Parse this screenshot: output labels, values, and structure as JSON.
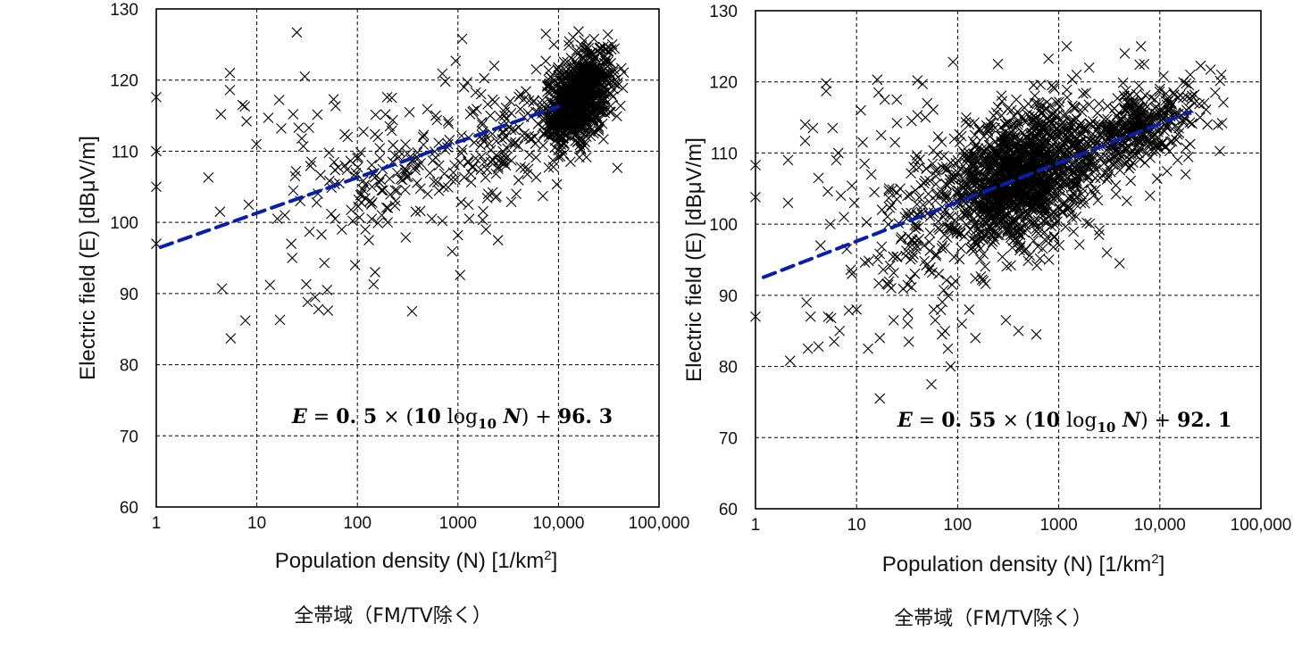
{
  "chart_data": [
    {
      "type": "scatter",
      "id": "left",
      "title": "",
      "xlabel": "Population density (N) [1/km",
      "xlabel_sup": "2",
      "xlabel_end": "]",
      "ylabel": "Electric field (E) [dBμV/m]",
      "xscale": "log",
      "xlim": [
        1,
        100000
      ],
      "ylim": [
        60,
        130
      ],
      "xticks": [
        1,
        10,
        100,
        1000,
        10000,
        100000
      ],
      "xtick_labels": [
        "1",
        "10",
        "100",
        "1000",
        "10,000",
        "100,000"
      ],
      "yticks": [
        60,
        70,
        80,
        90,
        100,
        110,
        120,
        130
      ],
      "ytick_labels": [
        "60",
        "70",
        "80",
        "90",
        "100",
        "110",
        "120",
        "130"
      ],
      "grid": true,
      "marker": "x",
      "fit": {
        "slope": 0.5,
        "intercept": 96.3,
        "x_range": [
          1.1,
          10000
        ],
        "color": "#0a1fa8",
        "style": "dashed"
      },
      "equation_text": "E = 0.5 × (10 log₁₀ N) + 96.3",
      "caption": "全帯域（FM/TV除く）",
      "points": [
        [
          1.05,
          117.6
        ],
        [
          1.05,
          110
        ],
        [
          1.05,
          105
        ],
        [
          1.05,
          97
        ],
        [
          3.3,
          106.3
        ],
        [
          4.3,
          101.5
        ],
        [
          4.4,
          115.2
        ],
        [
          4.5,
          90.7
        ],
        [
          5.4,
          121
        ],
        [
          5.4,
          118.6
        ],
        [
          5.5,
          83.7
        ],
        [
          7.2,
          116.5
        ],
        [
          7.6,
          116.3
        ],
        [
          7.7,
          86.2
        ],
        [
          7.9,
          114.2
        ],
        [
          8.3,
          102.5
        ],
        [
          9.9,
          111
        ],
        [
          13,
          114.7
        ],
        [
          13.5,
          91.2
        ],
        [
          16,
          100.5
        ],
        [
          16.7,
          117.2
        ],
        [
          17,
          86.3
        ],
        [
          17.5,
          113.2
        ],
        [
          19,
          101
        ],
        [
          22,
          97
        ],
        [
          22.5,
          95
        ],
        [
          23,
          115.2
        ],
        [
          24,
          106.5
        ],
        [
          24.5,
          107.2
        ],
        [
          25,
          126.7
        ],
        [
          26,
          113.3
        ],
        [
          27,
          103
        ],
        [
          28,
          111.8
        ],
        [
          29,
          110.7
        ],
        [
          30,
          120.5
        ],
        [
          31,
          91.3
        ],
        [
          32,
          88.8
        ],
        [
          33,
          113.3
        ],
        [
          35,
          108.5
        ],
        [
          38,
          89.5
        ],
        [
          41,
          87.8
        ],
        [
          44,
          98.3
        ],
        [
          47,
          94.3
        ],
        [
          50,
          90.5
        ],
        [
          51,
          87.6
        ],
        [
          55,
          101.2
        ],
        [
          58,
          117.3
        ],
        [
          60,
          100.5
        ],
        [
          66,
          105.5
        ],
        [
          70,
          99
        ],
        [
          75,
          108
        ],
        [
          80,
          112
        ],
        [
          90,
          100.2
        ],
        [
          95,
          94
        ],
        [
          100,
          109
        ],
        [
          105,
          100.7
        ],
        [
          110,
          104
        ],
        [
          120,
          99
        ],
        [
          130,
          97.5
        ],
        [
          140,
          105
        ],
        [
          145,
          91.3
        ],
        [
          150,
          93
        ],
        [
          160,
          112
        ],
        [
          170,
          106
        ],
        [
          175,
          101
        ],
        [
          180,
          104.5
        ],
        [
          200,
          100
        ],
        [
          210,
          113.5
        ],
        [
          220,
          117.5
        ],
        [
          240,
          103
        ],
        [
          260,
          110
        ],
        [
          300,
          107
        ],
        [
          330,
          115.5
        ],
        [
          350,
          87.5
        ],
        [
          380,
          101.5
        ],
        [
          400,
          109
        ],
        [
          450,
          112
        ],
        [
          500,
          104
        ],
        [
          550,
          100.5
        ],
        [
          600,
          115
        ],
        [
          650,
          108
        ],
        [
          700,
          100.2
        ],
        [
          750,
          119.8
        ],
        [
          800,
          111
        ],
        [
          900,
          107
        ],
        [
          950,
          122.7
        ],
        [
          1000,
          98.2
        ],
        [
          1050,
          92.6
        ],
        [
          1100,
          125.8
        ],
        [
          1150,
          119
        ],
        [
          1300,
          100.5
        ],
        [
          1500,
          109
        ],
        [
          1700,
          118
        ],
        [
          1900,
          99
        ],
        [
          2000,
          104
        ],
        [
          2100,
          115
        ],
        [
          2300,
          122
        ],
        [
          2500,
          97.5
        ],
        [
          2800,
          110
        ],
        [
          3000,
          108
        ],
        [
          3400,
          113
        ],
        [
          3800,
          104
        ],
        [
          4200,
          118
        ],
        [
          5000,
          107.5
        ],
        [
          6000,
          121.5
        ],
        [
          7000,
          103.7
        ],
        [
          7500,
          126.5
        ],
        [
          8000,
          107.7
        ],
        [
          9000,
          125
        ],
        [
          14000,
          126
        ],
        [
          20000,
          124.5
        ],
        [
          30000,
          121
        ]
      ],
      "clusters": [
        {
          "center_logx": 4.2,
          "center_y": 117.5,
          "sd_logx": 0.17,
          "sd_y": 3.3,
          "rho": 0.45,
          "count": 850
        },
        {
          "center_logx": 3.4,
          "center_y": 110.5,
          "sd_logx": 0.35,
          "sd_y": 4.5,
          "rho": 0.3,
          "count": 140
        },
        {
          "center_logx": 2.2,
          "center_y": 107.5,
          "sd_logx": 0.35,
          "sd_y": 3.8,
          "rho": 0.2,
          "count": 90
        }
      ]
    },
    {
      "type": "scatter",
      "id": "right",
      "title": "",
      "xlabel": "Population density (N) [1/km",
      "xlabel_sup": "2",
      "xlabel_end": "]",
      "ylabel": "Electric field (E) [dBμV/m]",
      "xscale": "log",
      "xlim": [
        1,
        100000
      ],
      "ylim": [
        60,
        130
      ],
      "xticks": [
        1,
        10,
        100,
        1000,
        10000,
        100000
      ],
      "xtick_labels": [
        "1",
        "10",
        "100",
        "1000",
        "10,000",
        "100,000"
      ],
      "yticks": [
        60,
        70,
        80,
        90,
        100,
        110,
        120,
        130
      ],
      "ytick_labels": [
        "60",
        "70",
        "80",
        "90",
        "100",
        "110",
        "120",
        "130"
      ],
      "grid": true,
      "marker": "x",
      "fit": {
        "slope": 0.55,
        "intercept": 92.1,
        "x_range": [
          1.2,
          20000
        ],
        "color": "#0a1fa8",
        "style": "dashed"
      },
      "equation_text": "E = 0.55 × (10 log₁₀ N) + 92.1",
      "caption": "全帯域（FM/TV除く）",
      "points": [
        [
          1.02,
          108.3
        ],
        [
          1.02,
          103.8
        ],
        [
          1.02,
          87
        ],
        [
          2.1,
          109
        ],
        [
          2.1,
          103
        ],
        [
          2.2,
          80.8
        ],
        [
          3.1,
          114
        ],
        [
          3.1,
          111.7
        ],
        [
          3.2,
          89
        ],
        [
          3.3,
          82.5
        ],
        [
          3.5,
          87
        ],
        [
          3.7,
          113.5
        ],
        [
          4.2,
          106.5
        ],
        [
          4.2,
          82.8
        ],
        [
          4.4,
          97
        ],
        [
          5,
          119.8
        ],
        [
          5,
          118.7
        ],
        [
          5.2,
          104.6
        ],
        [
          5.5,
          100
        ],
        [
          5.6,
          86.8
        ],
        [
          5.8,
          113.5
        ],
        [
          6,
          83.5
        ],
        [
          6.3,
          109
        ],
        [
          6.6,
          110
        ],
        [
          6.8,
          85
        ],
        [
          7,
          104
        ],
        [
          7.5,
          101
        ],
        [
          8,
          96.5
        ],
        [
          9,
          93
        ],
        [
          9.5,
          103
        ],
        [
          10,
          88
        ],
        [
          11,
          116
        ],
        [
          11.5,
          111.5
        ],
        [
          12,
          108.5
        ],
        [
          13,
          82.5
        ],
        [
          14,
          107
        ],
        [
          15,
          104.5
        ],
        [
          16,
          120.3
        ],
        [
          16.5,
          118.5
        ],
        [
          17,
          84
        ],
        [
          17.5,
          112.5
        ],
        [
          19,
          117.5
        ],
        [
          21,
          105
        ],
        [
          22,
          91
        ],
        [
          24,
          111.5
        ],
        [
          25,
          117.5
        ],
        [
          27,
          105
        ],
        [
          30,
          101
        ],
        [
          32,
          86
        ],
        [
          35,
          114.5
        ],
        [
          38,
          109
        ],
        [
          40,
          120.2
        ],
        [
          45,
          119.7
        ],
        [
          48,
          115
        ],
        [
          50,
          117
        ],
        [
          55,
          77.5
        ],
        [
          58,
          88
        ],
        [
          60,
          86.5
        ],
        [
          65,
          93
        ],
        [
          70,
          84.5
        ],
        [
          75,
          85
        ],
        [
          80,
          82.5
        ],
        [
          85,
          80
        ],
        [
          90,
          122.8
        ],
        [
          95,
          92
        ],
        [
          17,
          75.5
        ],
        [
          110,
          86
        ],
        [
          130,
          88
        ],
        [
          150,
          84
        ],
        [
          180,
          92
        ],
        [
          200,
          113
        ],
        [
          250,
          122.5
        ],
        [
          300,
          86.5
        ],
        [
          400,
          85
        ],
        [
          600,
          84.5
        ],
        [
          800,
          95
        ],
        [
          1200,
          125
        ],
        [
          1500,
          121
        ],
        [
          2000,
          122
        ],
        [
          2500,
          98.5
        ],
        [
          3000,
          96
        ],
        [
          4000,
          94.5
        ],
        [
          4500,
          124
        ],
        [
          5000,
          117
        ],
        [
          6500,
          125
        ],
        [
          7000,
          122.5
        ],
        [
          8000,
          104
        ],
        [
          9000,
          111
        ],
        [
          10000,
          119
        ],
        [
          12000,
          114
        ],
        [
          15000,
          109
        ],
        [
          18000,
          107
        ],
        [
          20000,
          121
        ],
        [
          22000,
          117
        ],
        [
          25000,
          115
        ]
      ],
      "clusters": [
        {
          "center_logx": 2.6,
          "center_y": 106.5,
          "sd_logx": 0.38,
          "sd_y": 5.0,
          "rho": 0.35,
          "count": 1400
        },
        {
          "center_logx": 3.8,
          "center_y": 113.5,
          "sd_logx": 0.3,
          "sd_y": 3.2,
          "rho": 0.5,
          "count": 380
        },
        {
          "center_logx": 1.6,
          "center_y": 99,
          "sd_logx": 0.3,
          "sd_y": 6,
          "rho": 0.2,
          "count": 110
        }
      ]
    }
  ]
}
